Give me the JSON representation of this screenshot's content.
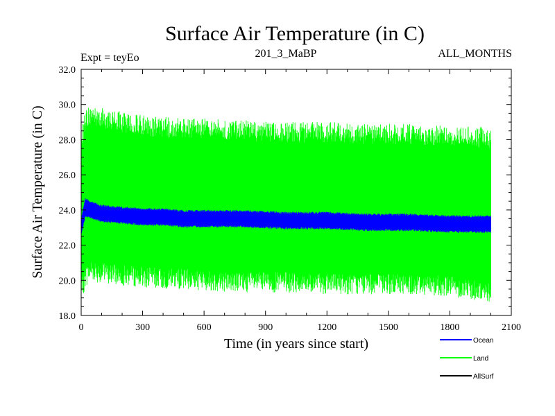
{
  "chart_data": {
    "type": "area",
    "title": "Surface Air Temperature (in C)",
    "experiment": "Expt = teyEo",
    "run_label": "201_3_MaBP",
    "period_label": "ALL_MONTHS",
    "xlabel": "Time (in years since start)",
    "ylabel": "Surface Air Temperature (in C)",
    "xlim": [
      0,
      2100
    ],
    "ylim": [
      18.0,
      32.0
    ],
    "x_ticks": [
      0,
      300,
      600,
      900,
      1200,
      1500,
      1800,
      2100
    ],
    "x_tick_labels": [
      "0",
      "300",
      "600",
      "900",
      "1200",
      "1500",
      "1800",
      "2100"
    ],
    "y_ticks": [
      18,
      20,
      22,
      24,
      26,
      28,
      30,
      32
    ],
    "y_tick_labels": [
      "18.0",
      "20.0",
      "22.0",
      "24.0",
      "26.0",
      "28.0",
      "30.0",
      "32.0"
    ],
    "legend_position": "bottom-right",
    "series": [
      {
        "name": "Land",
        "color": "#00ff00",
        "x": [
          0,
          20,
          50,
          100,
          200,
          300,
          400,
          500,
          600,
          800,
          1000,
          1200,
          1400,
          1600,
          1800,
          2000
        ],
        "min": [
          18.6,
          19.6,
          20.0,
          19.8,
          19.7,
          19.6,
          19.5,
          19.5,
          19.4,
          19.3,
          19.3,
          19.2,
          19.2,
          19.2,
          19.1,
          18.7
        ],
        "max": [
          28.5,
          29.7,
          30.0,
          29.8,
          29.6,
          29.4,
          29.3,
          29.2,
          29.2,
          29.1,
          29.0,
          29.0,
          28.9,
          28.9,
          28.8,
          28.7
        ]
      },
      {
        "name": "Ocean",
        "color": "#0000ff",
        "x": [
          0,
          20,
          50,
          100,
          200,
          300,
          400,
          500,
          600,
          800,
          1000,
          1200,
          1400,
          1600,
          1800,
          2000
        ],
        "min": [
          22.5,
          23.6,
          23.5,
          23.3,
          23.2,
          23.1,
          23.1,
          23.0,
          23.0,
          23.0,
          22.9,
          22.9,
          22.8,
          22.8,
          22.7,
          22.7
        ],
        "max": [
          23.5,
          24.7,
          24.5,
          24.3,
          24.2,
          24.1,
          24.1,
          24.0,
          24.0,
          24.0,
          23.9,
          23.9,
          23.8,
          23.8,
          23.7,
          23.7
        ]
      },
      {
        "name": "AllSurf",
        "color": "#000000",
        "x": [],
        "values": []
      }
    ]
  }
}
